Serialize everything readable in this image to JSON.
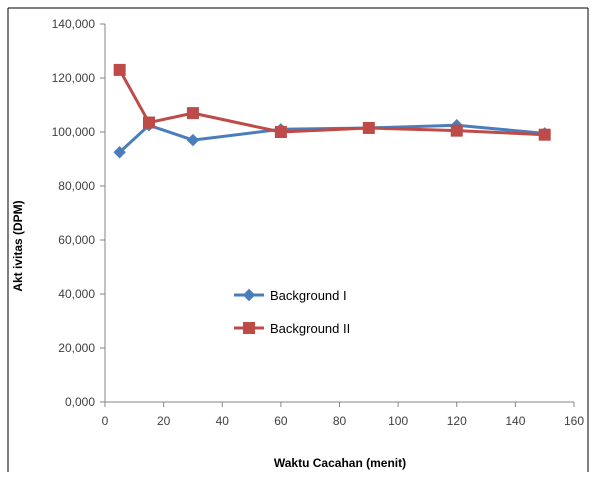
{
  "chart_data": {
    "type": "line",
    "title": "",
    "xlabel": "Waktu Cacahan  (menit)",
    "ylabel": "Akt ivitas  (DPM)",
    "xlim": [
      0,
      160
    ],
    "ylim": [
      0,
      140000
    ],
    "x_ticks": [
      0,
      20,
      40,
      60,
      80,
      100,
      120,
      140,
      160
    ],
    "x_tick_labels": [
      "0",
      "20",
      "40",
      "60",
      "80",
      "100",
      "120",
      "140",
      "160"
    ],
    "y_ticks": [
      0,
      20000,
      40000,
      60000,
      80000,
      100000,
      120000,
      140000
    ],
    "y_tick_labels": [
      "0,000",
      "20,000",
      "40,000",
      "60,000",
      "80,000",
      "100,000",
      "120,000",
      "140,000"
    ],
    "grid": false,
    "legend_position": "center",
    "series": [
      {
        "name": "Background I",
        "color": "#4a7ebb",
        "marker": "diamond",
        "x": [
          5,
          15,
          30,
          60,
          90,
          120,
          150
        ],
        "y": [
          92500,
          102500,
          97000,
          101000,
          101500,
          102500,
          99500
        ]
      },
      {
        "name": "Background II",
        "color": "#be4b48",
        "marker": "square",
        "x": [
          5,
          15,
          30,
          60,
          90,
          120,
          150
        ],
        "y": [
          123000,
          103500,
          107000,
          100000,
          101500,
          100500,
          99000
        ]
      }
    ]
  }
}
